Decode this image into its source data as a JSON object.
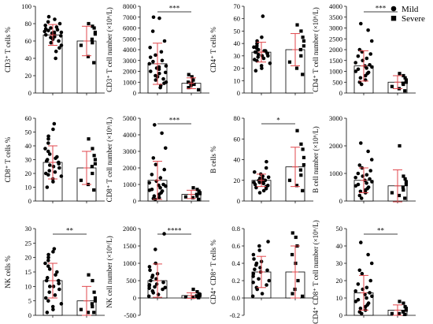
{
  "legend": {
    "mild_label": "Mild",
    "severe_label": "Severe"
  },
  "colors": {
    "points": "#000000",
    "error_bar": "#e0474c",
    "bar_outline": "#000000",
    "bar_fill": "#ffffff"
  },
  "chart_data": [
    {
      "type": "scatter",
      "ylabel": "CD3⁺ T cells %",
      "ylim": [
        0,
        100
      ],
      "yticks": [
        0,
        20,
        40,
        60,
        80,
        100
      ],
      "categories": [
        "Mild",
        "Severe"
      ],
      "series": [
        {
          "name": "Mild",
          "mean": 67,
          "sd": 12,
          "values": [
            88,
            85,
            82,
            80,
            78,
            76,
            75,
            74,
            73,
            72,
            71,
            70,
            70,
            69,
            68,
            67,
            66,
            65,
            64,
            62,
            60,
            58,
            55,
            52,
            48,
            40
          ]
        },
        {
          "name": "Severe",
          "mean": 60,
          "sd": 17,
          "values": [
            80,
            77,
            75,
            70,
            68,
            62,
            58,
            55,
            42,
            35
          ]
        }
      ]
    },
    {
      "type": "scatter",
      "ylabel": "CD3⁺ T cell number (×10⁶/L)",
      "ylim": [
        0,
        8000
      ],
      "yticks": [
        0,
        1000,
        2000,
        3000,
        4000,
        5000,
        6000,
        7000,
        8000
      ],
      "categories": [
        "Mild",
        "Severe"
      ],
      "significance": "***",
      "series": [
        {
          "name": "Mild",
          "mean": 2700,
          "sd": 1900,
          "values": [
            7000,
            6900,
            5700,
            4800,
            4200,
            3800,
            3500,
            3300,
            3000,
            2900,
            2700,
            2500,
            2400,
            2300,
            2200,
            2000,
            1900,
            1800,
            1600,
            1500,
            1300,
            1200,
            1000,
            900,
            700,
            500
          ]
        },
        {
          "name": "Severe",
          "mean": 900,
          "sd": 500,
          "values": [
            1700,
            1500,
            1200,
            1000,
            900,
            800,
            700,
            500,
            300
          ]
        }
      ]
    },
    {
      "type": "scatter",
      "ylabel": "CD4⁺ T cells %",
      "ylim": [
        0,
        70
      ],
      "yticks": [
        0,
        10,
        20,
        30,
        40,
        50,
        60,
        70
      ],
      "categories": [
        "Mild",
        "Severe"
      ],
      "series": [
        {
          "name": "Mild",
          "mean": 33,
          "sd": 8,
          "values": [
            62,
            45,
            42,
            40,
            38,
            37,
            36,
            35,
            34,
            34,
            33,
            33,
            32,
            32,
            31,
            30,
            30,
            29,
            28,
            27,
            26,
            24,
            22,
            20,
            18
          ]
        },
        {
          "name": "Severe",
          "mean": 35,
          "sd": 13,
          "values": [
            55,
            50,
            45,
            42,
            38,
            35,
            30,
            25,
            20,
            15
          ]
        }
      ]
    },
    {
      "type": "scatter",
      "ylabel": "CD4⁺ T cell number (×10⁶/L)",
      "ylim": [
        0,
        4000
      ],
      "yticks": [
        0,
        500,
        1000,
        1500,
        2000,
        2500,
        3000,
        3500,
        4000
      ],
      "categories": [
        "Mild",
        "Severe"
      ],
      "significance": "***",
      "series": [
        {
          "name": "Mild",
          "mean": 1250,
          "sd": 700,
          "values": [
            3200,
            2900,
            2400,
            2000,
            1900,
            1800,
            1700,
            1600,
            1500,
            1400,
            1300,
            1250,
            1200,
            1150,
            1100,
            1000,
            950,
            900,
            800,
            700,
            600,
            500,
            400
          ]
        },
        {
          "name": "Severe",
          "mean": 500,
          "sd": 300,
          "values": [
            900,
            800,
            700,
            600,
            500,
            450,
            400,
            300,
            200,
            100
          ]
        }
      ]
    },
    {
      "type": "scatter",
      "ylabel": "CD8⁺ T cells %",
      "ylim": [
        0,
        60
      ],
      "yticks": [
        0,
        10,
        20,
        30,
        40,
        50,
        60
      ],
      "categories": [
        "Mild",
        "Severe"
      ],
      "series": [
        {
          "name": "Mild",
          "mean": 28,
          "sd": 12,
          "values": [
            56,
            52,
            47,
            45,
            42,
            38,
            36,
            34,
            32,
            31,
            30,
            29,
            28,
            27,
            26,
            25,
            24,
            22,
            21,
            20,
            19,
            18,
            16,
            14,
            10
          ]
        },
        {
          "name": "Severe",
          "mean": 24,
          "sd": 12,
          "values": [
            45,
            38,
            33,
            30,
            27,
            25,
            20,
            15,
            12,
            8
          ]
        }
      ]
    },
    {
      "type": "scatter",
      "ylabel": "CD8⁺ T cell number (×10⁶/L)",
      "ylim": [
        0,
        5000
      ],
      "yticks": [
        0,
        1000,
        2000,
        3000,
        4000,
        5000
      ],
      "categories": [
        "Mild",
        "Severe"
      ],
      "significance": "***",
      "series": [
        {
          "name": "Mild",
          "mean": 1250,
          "sd": 1150,
          "values": [
            4600,
            4100,
            3200,
            2600,
            2200,
            1900,
            1600,
            1400,
            1200,
            1100,
            1000,
            950,
            900,
            800,
            700,
            650,
            600,
            500,
            400,
            300,
            200,
            150,
            100
          ]
        },
        {
          "name": "Severe",
          "mean": 400,
          "sd": 250,
          "values": [
            800,
            700,
            600,
            500,
            450,
            400,
            300,
            250,
            200,
            100
          ]
        }
      ]
    },
    {
      "type": "scatter",
      "ylabel": "B cells %",
      "ylim": [
        0,
        80
      ],
      "yticks": [
        0,
        20,
        40,
        60,
        80
      ],
      "categories": [
        "Mild",
        "Severe"
      ],
      "significance": "*",
      "series": [
        {
          "name": "Mild",
          "mean": 20,
          "sd": 6,
          "values": [
            38,
            32,
            28,
            26,
            24,
            23,
            22,
            21,
            20,
            20,
            19,
            18,
            18,
            17,
            16,
            15,
            14,
            13,
            12,
            10,
            8
          ]
        },
        {
          "name": "Severe",
          "mean": 33,
          "sd": 19,
          "values": [
            68,
            55,
            50,
            42,
            35,
            30,
            25,
            20,
            15,
            10
          ]
        }
      ]
    },
    {
      "type": "scatter",
      "ylabel": "B cell number (×10⁶/L)",
      "ylim": [
        0,
        3000
      ],
      "yticks": [
        0,
        1000,
        2000,
        3000
      ],
      "categories": [
        "Mild",
        "Severe"
      ],
      "series": [
        {
          "name": "Mild",
          "mean": 750,
          "sd": 450,
          "values": [
            2100,
            1800,
            1500,
            1300,
            1200,
            1100,
            1000,
            950,
            900,
            850,
            800,
            750,
            700,
            650,
            600,
            550,
            500,
            450,
            400,
            350,
            300,
            200,
            100
          ]
        },
        {
          "name": "Severe",
          "mean": 550,
          "sd": 580,
          "values": [
            2000,
            900,
            800,
            700,
            600,
            500,
            400,
            300,
            200,
            100
          ]
        }
      ]
    },
    {
      "type": "scatter",
      "ylabel": "NK cells %",
      "ylim": [
        0,
        30
      ],
      "yticks": [
        0,
        5,
        10,
        15,
        20,
        25,
        30
      ],
      "categories": [
        "Mild",
        "Severe"
      ],
      "significance": "**",
      "series": [
        {
          "name": "Mild",
          "mean": 12,
          "sd": 6,
          "values": [
            23,
            22,
            21,
            20,
            19,
            18,
            17,
            16,
            15,
            14,
            13,
            12,
            12,
            11,
            10,
            10,
            9,
            8,
            7,
            6,
            5,
            4,
            3,
            2,
            1
          ]
        },
        {
          "name": "Severe",
          "mean": 5,
          "sd": 5,
          "values": [
            14,
            12,
            8,
            6,
            5,
            4,
            3,
            2,
            1,
            1
          ]
        }
      ]
    },
    {
      "type": "scatter",
      "ylabel": "NK cell number (×10⁶/L)",
      "ylim": [
        -500,
        2000
      ],
      "yticks": [
        -500,
        0,
        500,
        1000,
        1500,
        2000
      ],
      "categories": [
        "Mild",
        "Severe"
      ],
      "significance": "****",
      "series": [
        {
          "name": "Mild",
          "mean": 500,
          "sd": 480,
          "values": [
            1850,
            1400,
            1000,
            900,
            800,
            700,
            650,
            600,
            550,
            500,
            450,
            400,
            380,
            350,
            320,
            300,
            280,
            250,
            200,
            150,
            100,
            50
          ]
        },
        {
          "name": "Severe",
          "mean": 70,
          "sd": 80,
          "values": [
            250,
            180,
            120,
            100,
            80,
            60,
            50,
            30,
            20,
            10
          ]
        }
      ]
    },
    {
      "type": "scatter",
      "ylabel": "CD4⁺ CD8⁺ T cells %",
      "ylim": [
        -0.2,
        0.8
      ],
      "yticks": [
        -0.2,
        0.0,
        0.2,
        0.4,
        0.6,
        0.8
      ],
      "categories": [
        "Mild",
        "Severe"
      ],
      "series": [
        {
          "name": "Mild",
          "mean": 0.3,
          "sd": 0.18,
          "values": [
            0.65,
            0.6,
            0.55,
            0.5,
            0.45,
            0.42,
            0.4,
            0.38,
            0.35,
            0.33,
            0.32,
            0.3,
            0.28,
            0.25,
            0.22,
            0.2,
            0.18,
            0.15,
            0.12,
            0.1,
            0.05,
            0.02
          ]
        },
        {
          "name": "Severe",
          "mean": 0.3,
          "sd": 0.3,
          "values": [
            0.75,
            0.7,
            0.6,
            0.5,
            0.4,
            0.2,
            0.1,
            0.05,
            0.02
          ]
        }
      ]
    },
    {
      "type": "scatter",
      "ylabel": "CD4⁺ CD8⁺ T cell number (×10⁶/L)",
      "ylim": [
        0,
        50
      ],
      "yticks": [
        0,
        10,
        20,
        30,
        40,
        50
      ],
      "categories": [
        "Mild",
        "Severe"
      ],
      "significance": "**",
      "series": [
        {
          "name": "Mild",
          "mean": 13,
          "sd": 10,
          "values": [
            42,
            35,
            30,
            26,
            24,
            20,
            18,
            16,
            15,
            14,
            13,
            12,
            11,
            10,
            9,
            8,
            7,
            6,
            5,
            4,
            3,
            2,
            1
          ]
        },
        {
          "name": "Severe",
          "mean": 3,
          "sd": 3,
          "values": [
            8,
            7,
            5,
            4,
            3,
            2,
            2,
            1,
            1,
            0.5
          ]
        }
      ]
    }
  ]
}
